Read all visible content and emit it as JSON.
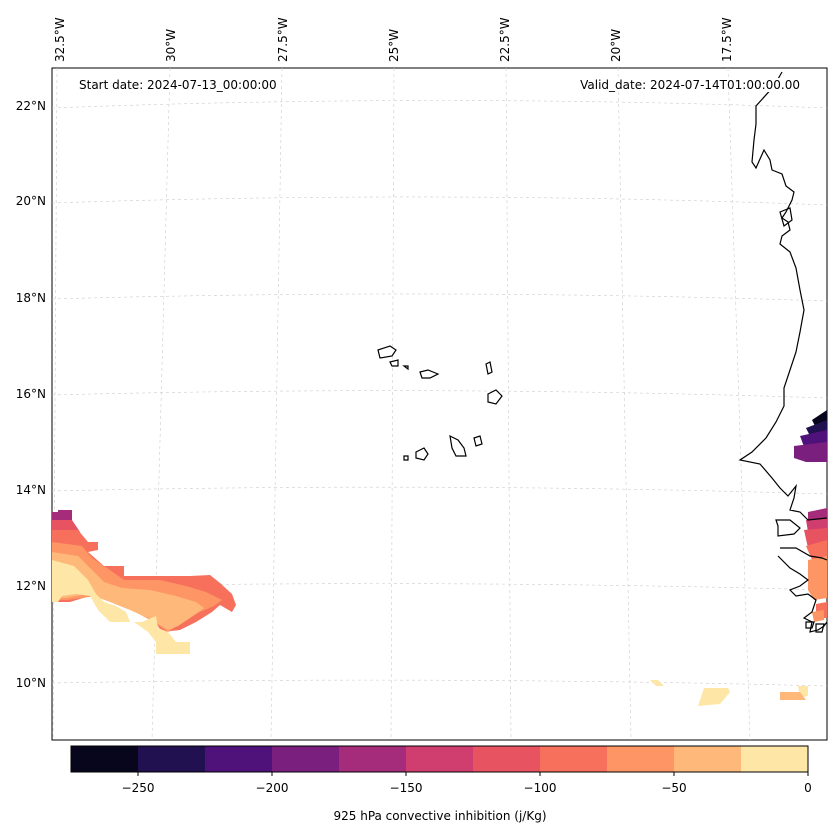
{
  "header": {
    "start_date": "Start date: 2024-07-13_00:00:00",
    "valid_date": "Valid_date: 2024-07-14T01:00:00.00"
  },
  "axes": {
    "lon_ticks": [
      "32.5°W",
      "30°W",
      "27.5°W",
      "25°W",
      "22.5°W",
      "20°W",
      "17.5°W"
    ],
    "lat_ticks": [
      "22°N",
      "20°N",
      "18°N",
      "16°N",
      "14°N",
      "12°N",
      "10°N"
    ]
  },
  "colorbar": {
    "label": "925 hPa convective inhibition (j/Kg)",
    "tick_labels": [
      "−250",
      "−200",
      "−150",
      "−100",
      "−50",
      "0"
    ],
    "levels": [
      -275,
      -250,
      -225,
      -200,
      -175,
      -150,
      -125,
      -100,
      -75,
      -50,
      -25,
      0
    ],
    "colors": [
      "#07061c",
      "#221150",
      "#4f127b",
      "#7b1f7f",
      "#a52c7a",
      "#cf3e6e",
      "#e85362",
      "#f7705c",
      "#fe9565",
      "#feb87a",
      "#fde6a6"
    ]
  },
  "map": {
    "extent_lon": [
      -32.8,
      -16.7
    ],
    "extent_lat": [
      8.9,
      22.8
    ],
    "gridlines": "dashed light gray",
    "coastline_color": "#000000"
  }
}
